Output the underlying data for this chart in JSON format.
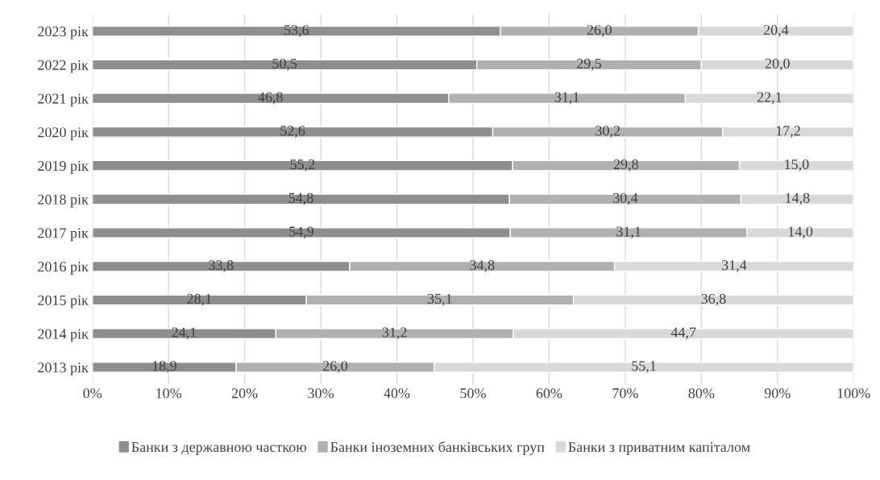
{
  "chart_data": {
    "type": "bar",
    "orientation": "horizontal",
    "stacked": true,
    "categories": [
      "2023 рік",
      "2022 рік",
      "2021 рік",
      "2020 рік",
      "2019 рік",
      "2018 рік",
      "2017 рік",
      "2016 рік",
      "2015 рік",
      "2014 рік",
      "2013 рік"
    ],
    "series": [
      {
        "name": "Банки з державною часткою",
        "color": "#8e8e8e",
        "values": [
          53.6,
          50.5,
          46.8,
          52.6,
          55.2,
          54.8,
          54.9,
          33.8,
          28.1,
          24.1,
          18.9
        ],
        "value_labels": [
          "53,6",
          "50,5",
          "46,8",
          "52,6",
          "55,2",
          "54,8",
          "54,9",
          "33,8",
          "28,1",
          "24,1",
          "18,9"
        ]
      },
      {
        "name": "Банки іноземних банківських груп",
        "color": "#b0b0b0",
        "values": [
          26.0,
          29.5,
          31.1,
          30.2,
          29.8,
          30.4,
          31.1,
          34.8,
          35.1,
          31.2,
          26.0
        ],
        "value_labels": [
          "26,0",
          "29,5",
          "31,1",
          "30,2",
          "29,8",
          "30,4",
          "31,1",
          "34,8",
          "35,1",
          "31,2",
          "26,0"
        ]
      },
      {
        "name": "Банки з приватним капіталом",
        "color": "#d9d9d9",
        "values": [
          20.4,
          20.0,
          22.1,
          17.2,
          15.0,
          14.8,
          14.0,
          31.4,
          36.8,
          44.7,
          55.1
        ],
        "value_labels": [
          "20,4",
          "20,0",
          "22,1",
          "17,2",
          "15,0",
          "14,8",
          "14,0",
          "31,4",
          "36,8",
          "44,7",
          "55,1"
        ]
      }
    ],
    "xlim": [
      0,
      100
    ],
    "xticks": [
      {
        "value": 0,
        "label": "0%"
      },
      {
        "value": 10,
        "label": "10%"
      },
      {
        "value": 20,
        "label": "20%"
      },
      {
        "value": 30,
        "label": "30%"
      },
      {
        "value": 40,
        "label": "40%"
      },
      {
        "value": 50,
        "label": "50%"
      },
      {
        "value": 60,
        "label": "60%"
      },
      {
        "value": 70,
        "label": "70%"
      },
      {
        "value": 80,
        "label": "80%"
      },
      {
        "value": 90,
        "label": "90%"
      },
      {
        "value": 100,
        "label": "100%"
      }
    ],
    "grid": "x",
    "legend": "bottom"
  }
}
